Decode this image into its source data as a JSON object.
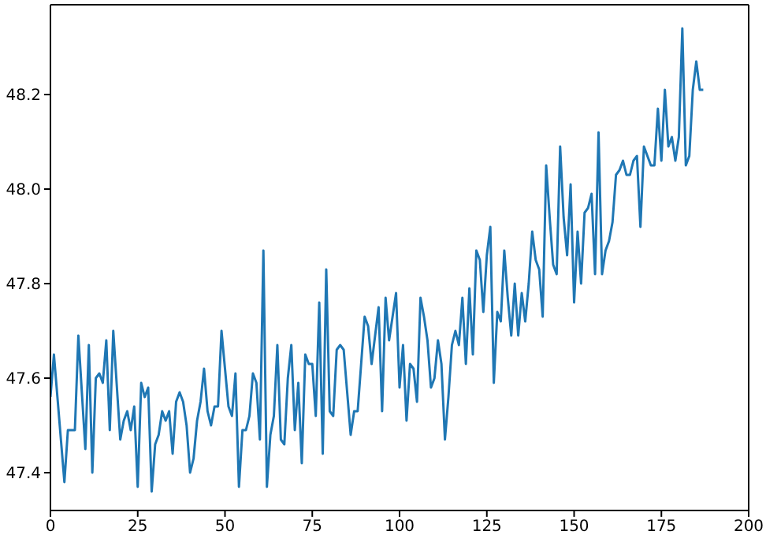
{
  "chart_data": {
    "type": "line",
    "x": [
      0,
      1,
      4,
      5,
      7,
      8,
      10,
      11,
      12,
      13,
      14,
      15,
      16,
      17,
      18,
      20,
      21,
      22,
      23,
      24,
      25,
      26,
      27,
      28,
      29,
      30,
      31,
      32,
      33,
      34,
      35,
      36,
      37,
      38,
      39,
      40,
      41,
      42,
      43,
      44,
      45,
      46,
      47,
      48,
      49,
      50,
      51,
      52,
      53,
      54,
      55,
      56,
      57,
      58,
      59,
      60,
      61,
      62,
      63,
      64,
      65,
      66,
      67,
      68,
      69,
      70,
      71,
      72,
      73,
      74,
      75,
      76,
      77,
      78,
      79,
      80,
      81,
      82,
      83,
      84,
      85,
      86,
      87,
      88,
      89,
      90,
      91,
      92,
      93,
      94,
      95,
      96,
      97,
      98,
      99,
      100,
      101,
      102,
      103,
      104,
      105,
      106,
      107,
      108,
      109,
      110,
      111,
      112,
      113,
      114,
      115,
      116,
      117,
      118,
      119,
      120,
      121,
      122,
      123,
      124,
      125,
      126,
      127,
      128,
      129,
      130,
      131,
      132,
      133,
      134,
      135,
      136,
      137,
      138,
      139,
      140,
      141,
      142,
      143,
      144,
      145,
      146,
      147,
      148,
      149,
      150,
      151,
      152,
      153,
      154,
      155,
      156,
      157,
      158,
      159,
      160,
      161,
      162,
      163,
      164,
      165,
      166,
      167,
      168,
      169,
      170,
      171,
      172,
      173,
      174,
      175,
      176,
      177,
      178,
      179,
      180,
      181,
      182,
      183,
      184,
      185,
      186,
      187
    ],
    "series": [
      {
        "color": "#1f77b4",
        "values": [
          47.56,
          47.65,
          47.38,
          47.49,
          47.49,
          47.69,
          47.45,
          47.67,
          47.4,
          47.6,
          47.61,
          47.59,
          47.68,
          47.49,
          47.7,
          47.47,
          47.51,
          47.53,
          47.49,
          47.54,
          47.37,
          47.59,
          47.56,
          47.58,
          47.36,
          47.46,
          47.48,
          47.53,
          47.51,
          47.53,
          47.44,
          47.55,
          47.57,
          47.55,
          47.5,
          47.4,
          47.43,
          47.51,
          47.55,
          47.62,
          47.53,
          47.5,
          47.54,
          47.54,
          47.7,
          47.62,
          47.54,
          47.52,
          47.61,
          47.37,
          47.49,
          47.49,
          47.52,
          47.61,
          47.59,
          47.47,
          47.87,
          47.37,
          47.48,
          47.52,
          47.67,
          47.47,
          47.46,
          47.6,
          47.67,
          47.49,
          47.59,
          47.42,
          47.65,
          47.63,
          47.63,
          47.52,
          47.76,
          47.44,
          47.83,
          47.53,
          47.52,
          47.66,
          47.67,
          47.66,
          47.57,
          47.48,
          47.53,
          47.53,
          47.63,
          47.73,
          47.71,
          47.63,
          47.69,
          47.75,
          47.53,
          47.77,
          47.68,
          47.73,
          47.78,
          47.58,
          47.67,
          47.51,
          47.63,
          47.62,
          47.55,
          47.77,
          47.73,
          47.68,
          47.58,
          47.6,
          47.68,
          47.63,
          47.47,
          47.56,
          47.67,
          47.7,
          47.67,
          47.77,
          47.63,
          47.79,
          47.65,
          47.87,
          47.85,
          47.74,
          47.86,
          47.92,
          47.59,
          47.74,
          47.72,
          47.87,
          47.77,
          47.69,
          47.8,
          47.69,
          47.78,
          47.72,
          47.8,
          47.91,
          47.85,
          47.83,
          47.73,
          48.05,
          47.94,
          47.84,
          47.82,
          48.09,
          47.94,
          47.86,
          48.01,
          47.76,
          47.91,
          47.8,
          47.95,
          47.96,
          47.99,
          47.82,
          48.12,
          47.82,
          47.87,
          47.89,
          47.93,
          48.03,
          48.04,
          48.06,
          48.03,
          48.03,
          48.06,
          48.07,
          47.92,
          48.09,
          48.07,
          48.05,
          48.05,
          48.17,
          48.06,
          48.21,
          48.09,
          48.11,
          48.06,
          48.11,
          48.34,
          48.05,
          48.07,
          48.21,
          48.27,
          48.21,
          48.21
        ]
      }
    ],
    "xlim": [
      0,
      200
    ],
    "xticks": [
      0,
      25,
      50,
      75,
      100,
      125,
      150,
      175,
      200
    ],
    "ylim": [
      47.32,
      48.39
    ],
    "yticks": [
      47.4,
      47.6,
      47.8,
      {
        "value": 48,
        "label": "48.0"
      },
      48.2
    ],
    "grid": false,
    "legend": false,
    "marker": "none",
    "line_style": "solid"
  }
}
